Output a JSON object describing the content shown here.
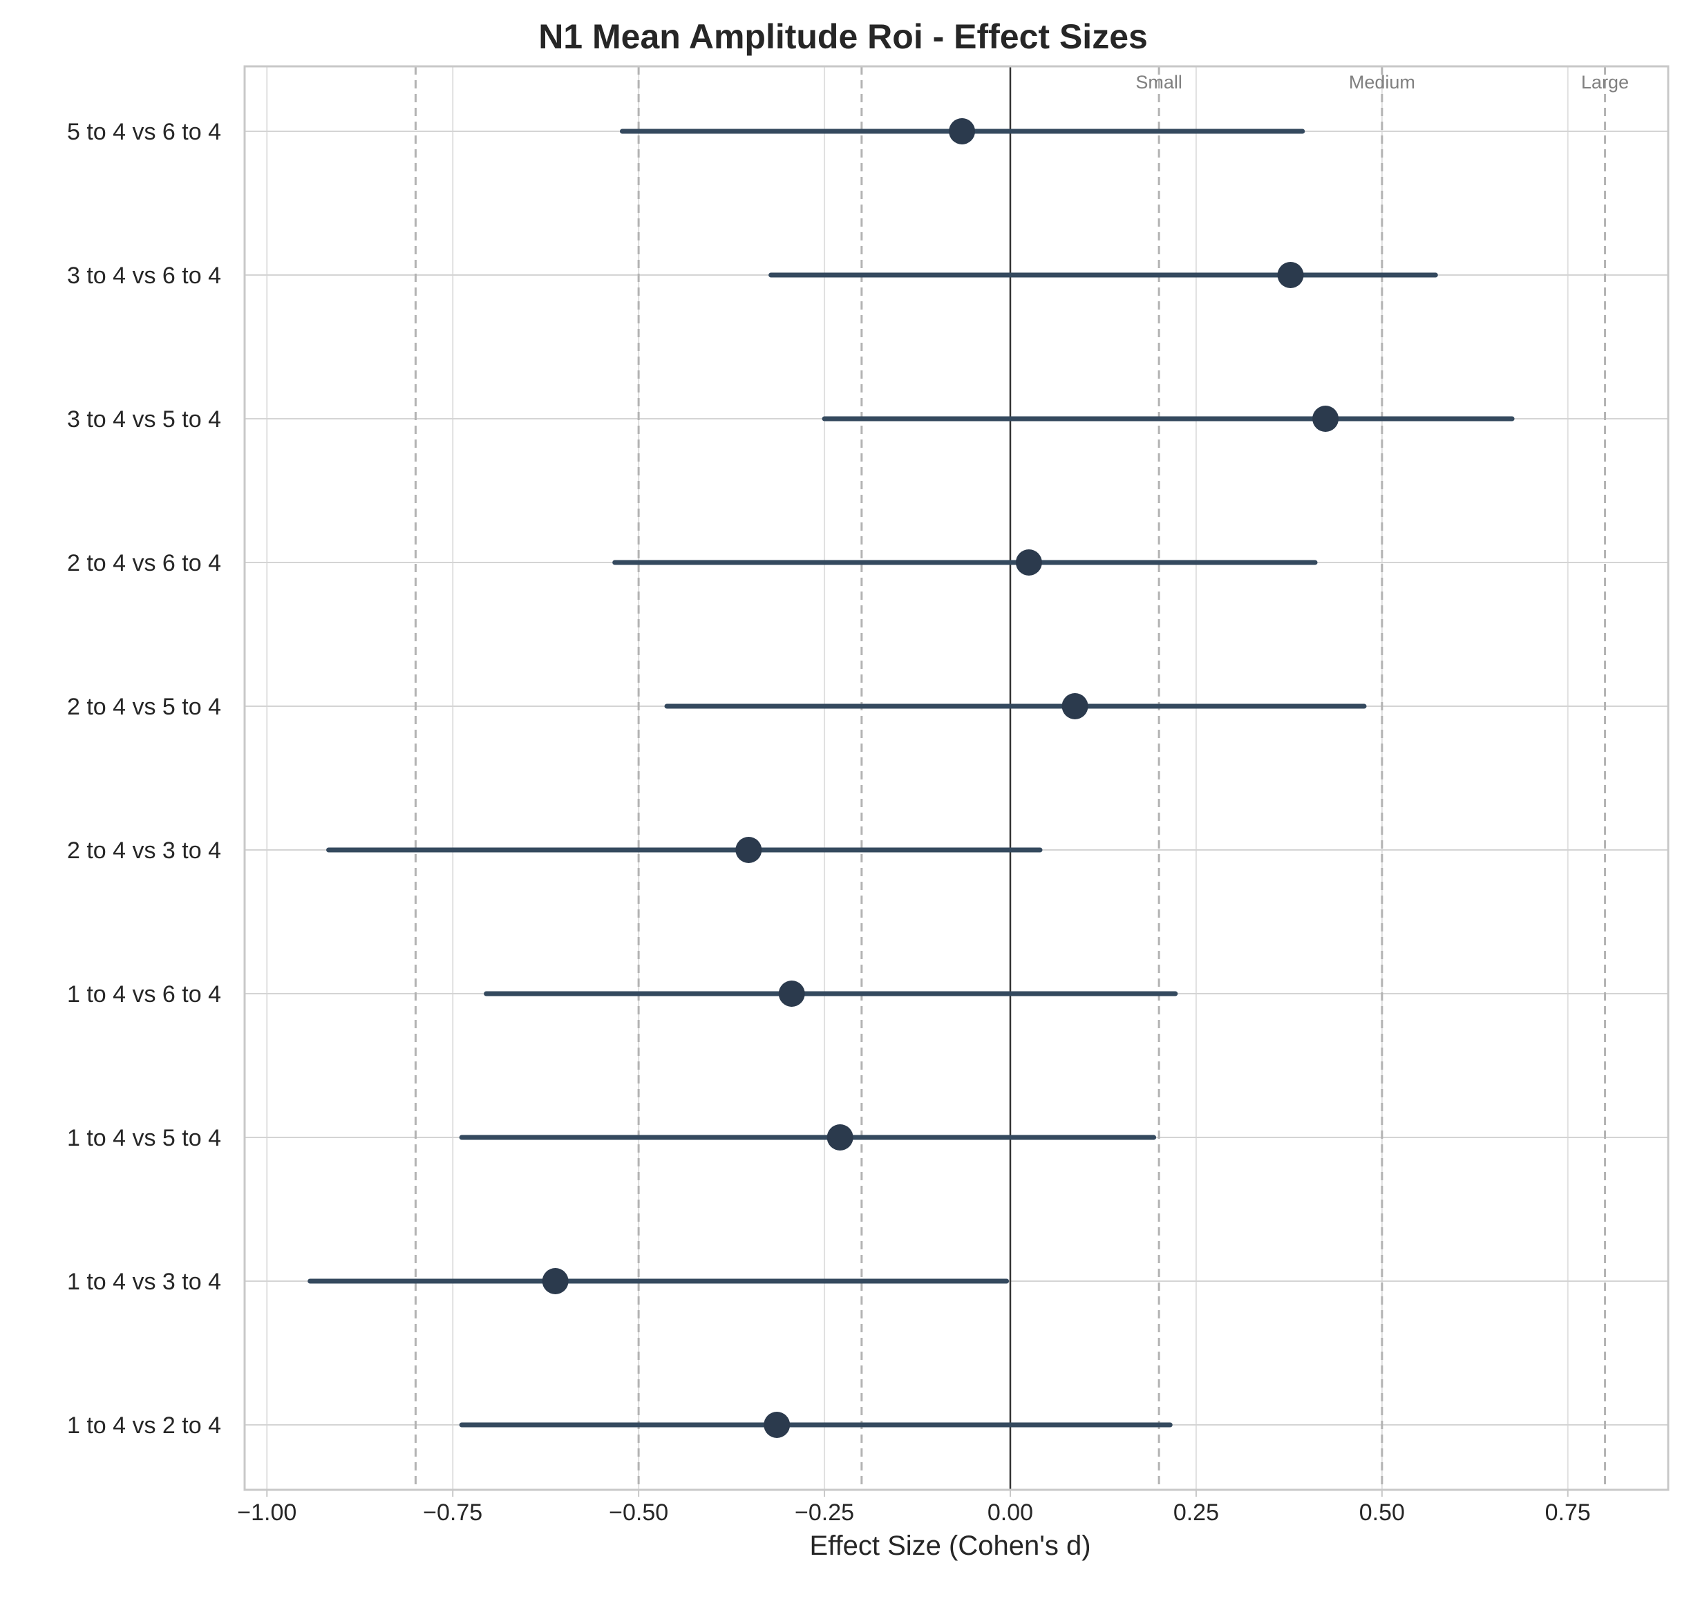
{
  "chart_data": {
    "type": "forest",
    "title": "N1 Mean Amplitude Roi - Effect Sizes",
    "xlabel": "Effect Size (Cohen's d)",
    "ylabel": "",
    "xlim": [
      -1.03,
      0.885
    ],
    "xticks": [
      -1.0,
      -0.75,
      -0.5,
      -0.25,
      0.0,
      0.25,
      0.5,
      0.75
    ],
    "xtick_labels": [
      "−1.00",
      "−0.75",
      "−0.50",
      "−0.25",
      "0.00",
      "0.25",
      "0.50",
      "0.75"
    ],
    "grid": true,
    "reference_line": 0.0,
    "thresholds": [
      {
        "label": "Small",
        "value": 0.2
      },
      {
        "label": "Medium",
        "value": 0.5
      },
      {
        "label": "Large",
        "value": 0.8
      }
    ],
    "negative_thresholds": [
      -0.2,
      -0.5,
      -0.8
    ],
    "colors": {
      "point": "#2b3a4d",
      "ci": "#34495e",
      "zero_line": "#333333",
      "threshold": "#b3b3b3",
      "grid": "#d4d4d4"
    },
    "comparisons": [
      {
        "label": "5 to 4 vs 6 to 4",
        "d": -0.065,
        "ci_low": -0.522,
        "ci_high": 0.393
      },
      {
        "label": "3 to 4 vs 6 to 4",
        "d": 0.377,
        "ci_low": -0.322,
        "ci_high": 0.572
      },
      {
        "label": "3 to 4 vs 5 to 4",
        "d": 0.424,
        "ci_low": -0.25,
        "ci_high": 0.675
      },
      {
        "label": "2 to 4 vs 6 to 4",
        "d": 0.025,
        "ci_low": -0.532,
        "ci_high": 0.41
      },
      {
        "label": "2 to 4 vs 5 to 4",
        "d": 0.087,
        "ci_low": -0.462,
        "ci_high": 0.476
      },
      {
        "label": "2 to 4 vs 3 to 4",
        "d": -0.352,
        "ci_low": -0.917,
        "ci_high": 0.04
      },
      {
        "label": "1 to 4 vs 6 to 4",
        "d": -0.294,
        "ci_low": -0.705,
        "ci_high": 0.222
      },
      {
        "label": "1 to 4 vs 5 to 4",
        "d": -0.229,
        "ci_low": -0.738,
        "ci_high": 0.193
      },
      {
        "label": "1 to 4 vs 3 to 4",
        "d": -0.612,
        "ci_low": -0.942,
        "ci_high": -0.005
      },
      {
        "label": "1 to 4 vs 2 to 4",
        "d": -0.314,
        "ci_low": -0.738,
        "ci_high": 0.215
      }
    ]
  }
}
